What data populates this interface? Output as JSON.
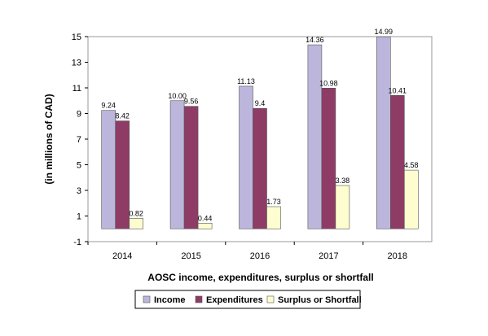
{
  "chart_data": {
    "type": "bar",
    "categories": [
      "2014",
      "2015",
      "2016",
      "2017",
      "2018"
    ],
    "series": [
      {
        "name": "Income",
        "values": [
          9.24,
          10.0,
          11.13,
          14.36,
          14.99
        ],
        "labels": [
          "9.24",
          "10.00",
          "11.13",
          "14.36",
          "14.99"
        ],
        "color": "#bdb6dc"
      },
      {
        "name": "Expenditures",
        "values": [
          8.42,
          9.56,
          9.4,
          10.98,
          10.41
        ],
        "labels": [
          "8.42",
          "9.56",
          "9.4",
          "10.98",
          "10.41"
        ],
        "color": "#8e3c65"
      },
      {
        "name": "Surplus or Shortfall",
        "values": [
          0.82,
          0.44,
          1.73,
          3.38,
          4.58
        ],
        "labels": [
          "0.82",
          "0.44",
          "1.73",
          "3.38",
          "4.58"
        ],
        "color": "#fdfdd0"
      }
    ],
    "title": "",
    "xlabel": "AOSC income, expenditures, surplus or shortfall",
    "ylabel": "(in millions of CAD)",
    "ylim": [
      -1,
      15
    ],
    "yticks": [
      "-1",
      "1",
      "3",
      "5",
      "7",
      "9",
      "11",
      "13",
      "15"
    ],
    "grid": false,
    "legend_position": "bottom"
  }
}
